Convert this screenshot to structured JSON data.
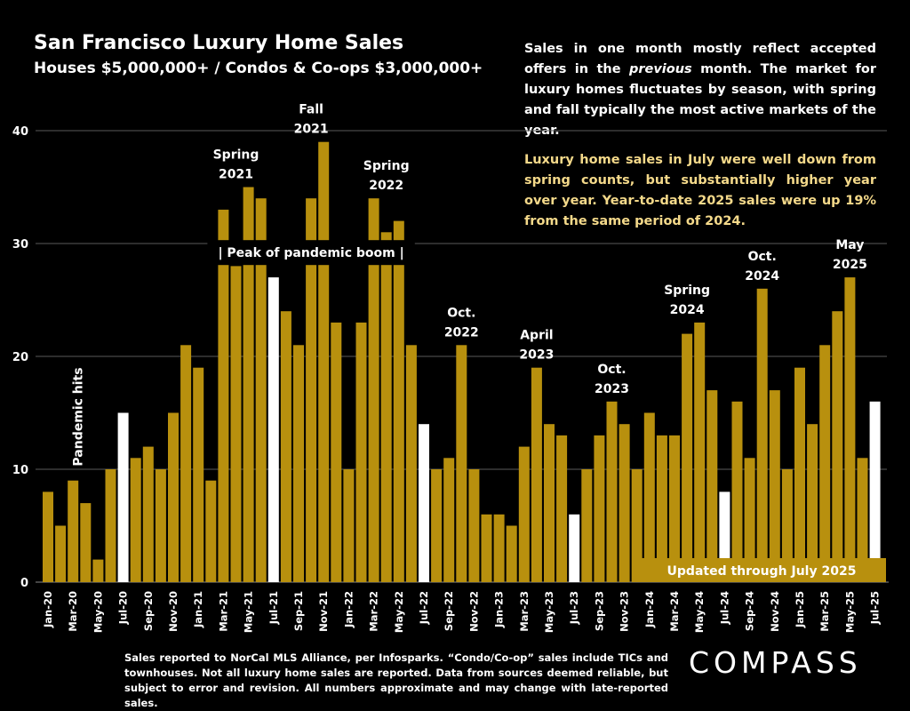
{
  "header": {
    "title": "San Francisco Luxury Home Sales",
    "subtitle": "Houses $5,000,000+ / Condos & Co-ops $3,000,000+"
  },
  "notes": {
    "note1_pre": "Sales in one month mostly reflect accepted offers in the ",
    "note1_em": "previous",
    "note1_post": " month. The market for luxury homes fluctuates by season, with spring and fall typically the most active markets of the year.",
    "note2": "Luxury home sales in July were well down from spring counts, but substantially higher year over year. Year-to-date 2025 sales were up 19% from the same period of 2024."
  },
  "footer": {
    "text": "Sales reported to NorCal MLS Alliance, per  Infosparks. “Condo/Co-op” sales include TICs and townhouses. Not all luxury home sales are reported. Data from sources deemed reliable, but subject to error and revision. All numbers approximate and may change with late-reported sales.",
    "logo": "COMPASS"
  },
  "chart_data": {
    "type": "bar",
    "ylim": [
      0,
      40
    ],
    "yticks": [
      0,
      10,
      20,
      30,
      40
    ],
    "grid": true,
    "colors": {
      "bar": "#b8900e",
      "highlight": "#ffffff",
      "background": "#000000",
      "pandemic": "#d9222a",
      "updated_box": "#b8900e"
    },
    "categories": [
      "Jan-20",
      "Feb-20",
      "Mar-20",
      "Apr-20",
      "May-20",
      "Jun-20",
      "Jul-20",
      "Aug-20",
      "Sep-20",
      "Oct-20",
      "Nov-20",
      "Dec-20",
      "Jan-21",
      "Feb-21",
      "Mar-21",
      "Apr-21",
      "May-21",
      "Jun-21",
      "Jul-21",
      "Aug-21",
      "Sep-21",
      "Oct-21",
      "Nov-21",
      "Dec-21",
      "Jan-22",
      "Feb-22",
      "Mar-22",
      "Apr-22",
      "May-22",
      "Jun-22",
      "Jul-22",
      "Aug-22",
      "Sep-22",
      "Oct-22",
      "Nov-22",
      "Dec-22",
      "Jan-23",
      "Feb-23",
      "Mar-23",
      "Apr-23",
      "May-23",
      "Jun-23",
      "Jul-23",
      "Aug-23",
      "Sep-23",
      "Oct-23",
      "Nov-23",
      "Dec-23",
      "Jan-24",
      "Feb-24",
      "Mar-24",
      "Apr-24",
      "May-24",
      "Jun-24",
      "Jul-24",
      "Aug-24",
      "Sep-24",
      "Oct-24",
      "Nov-24",
      "Dec-24",
      "Jan-25",
      "Feb-25",
      "Mar-25",
      "Apr-25",
      "May-25",
      "Jun-25",
      "Jul-25"
    ],
    "values": [
      8,
      5,
      9,
      7,
      2,
      10,
      15,
      11,
      12,
      10,
      15,
      21,
      19,
      9,
      33,
      28,
      35,
      34,
      27,
      24,
      21,
      34,
      39,
      23,
      10,
      23,
      34,
      31,
      32,
      21,
      14,
      10,
      11,
      21,
      10,
      6,
      6,
      5,
      12,
      19,
      14,
      13,
      6,
      10,
      13,
      16,
      14,
      10,
      15,
      13,
      13,
      22,
      23,
      17,
      8,
      16,
      11,
      26,
      17,
      10,
      19,
      14,
      21,
      24,
      27,
      11,
      16
    ],
    "highlighted": [
      "Jul-20",
      "Jul-21",
      "Jul-22",
      "Jul-23",
      "Jul-24",
      "Jul-25"
    ],
    "annotations": [
      {
        "lines": [
          "Spring",
          "2021"
        ],
        "category": "Apr-21",
        "value": 35
      },
      {
        "lines": [
          "Fall",
          "2021"
        ],
        "category": "Oct-21",
        "value": 39
      },
      {
        "lines": [
          "Spring",
          "2022"
        ],
        "category": "Apr-22",
        "value": 34
      },
      {
        "lines": [
          "Oct.",
          "2022"
        ],
        "category": "Oct-22",
        "value": 21
      },
      {
        "lines": [
          "April",
          "2023"
        ],
        "category": "Apr-23",
        "value": 19
      },
      {
        "lines": [
          "Oct.",
          "2023"
        ],
        "category": "Oct-23",
        "value": 16
      },
      {
        "lines": [
          "Spring",
          "2024"
        ],
        "category": "Apr-24",
        "value": 23
      },
      {
        "lines": [
          "Oct.",
          "2024"
        ],
        "category": "Oct-24",
        "value": 26
      },
      {
        "lines": [
          "May",
          "2025"
        ],
        "category": "May-25",
        "value": 27
      }
    ],
    "pandemic_label": "Pandemic hits",
    "peak_label": "|   Peak of pandemic boom   |",
    "updated_label": "Updated through July 2025"
  }
}
